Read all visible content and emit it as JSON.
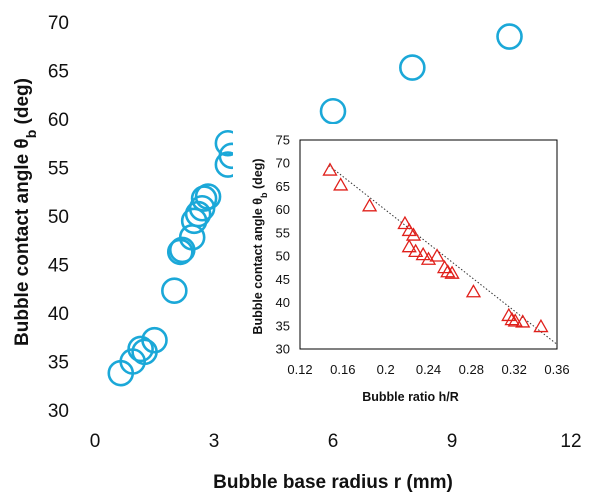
{
  "chart_data": [
    {
      "type": "scatter",
      "title": "",
      "xlabel": "Bubble base radius r (mm)",
      "ylabel_main": "Bubble contact angle θ",
      "ylabel_sub": "b",
      "ylabel_unit": " (deg)",
      "xlim": [
        0,
        12
      ],
      "ylim": [
        30,
        70
      ],
      "xticks": [
        0,
        3,
        6,
        9,
        12
      ],
      "xtick_labels": [
        "0",
        "3",
        "6",
        "9",
        "12"
      ],
      "yticks": [
        30,
        35,
        40,
        45,
        50,
        55,
        60,
        65,
        70
      ],
      "ytick_labels": [
        "30",
        "35",
        "40",
        "45",
        "50",
        "55",
        "60",
        "65",
        "70"
      ],
      "grid": false,
      "marker": "open-circle",
      "color": "#1ba8d8",
      "points": [
        {
          "x": 0.65,
          "y": 33.8
        },
        {
          "x": 0.95,
          "y": 35.0
        },
        {
          "x": 1.15,
          "y": 36.3
        },
        {
          "x": 1.25,
          "y": 36.0
        },
        {
          "x": 1.5,
          "y": 37.2
        },
        {
          "x": 2.0,
          "y": 42.3
        },
        {
          "x": 2.15,
          "y": 46.3
        },
        {
          "x": 2.2,
          "y": 46.5
        },
        {
          "x": 2.45,
          "y": 47.8
        },
        {
          "x": 2.5,
          "y": 49.5
        },
        {
          "x": 2.6,
          "y": 50.2
        },
        {
          "x": 2.7,
          "y": 50.8
        },
        {
          "x": 2.75,
          "y": 51.8
        },
        {
          "x": 2.85,
          "y": 52.0
        },
        {
          "x": 3.35,
          "y": 55.3
        },
        {
          "x": 3.45,
          "y": 56.2
        },
        {
          "x": 3.35,
          "y": 57.5
        },
        {
          "x": 6.0,
          "y": 60.8
        },
        {
          "x": 8.0,
          "y": 65.3
        },
        {
          "x": 10.45,
          "y": 68.5
        }
      ]
    },
    {
      "type": "scatter",
      "title": "",
      "xlabel": "Bubble ratio h/R",
      "ylabel_main": "Bubble contact angle θ",
      "ylabel_sub": "b",
      "ylabel_unit": " (deg)",
      "xlim": [
        0.12,
        0.36
      ],
      "ylim": [
        30,
        75
      ],
      "xticks": [
        0.12,
        0.16,
        0.2,
        0.24,
        0.28,
        0.32,
        0.36
      ],
      "xtick_labels": [
        "0.12",
        "0.16",
        "0.2",
        "0.24",
        "0.28",
        "0.32",
        "0.36"
      ],
      "yticks": [
        30,
        35,
        40,
        45,
        50,
        55,
        60,
        65,
        70,
        75
      ],
      "ytick_labels": [
        "30",
        "35",
        "40",
        "45",
        "50",
        "55",
        "60",
        "65",
        "70",
        "75"
      ],
      "grid": false,
      "marker": "open-triangle",
      "color": "#e0201b",
      "trendline": {
        "style": "dotted",
        "color": "#333333",
        "x": [
          0.147,
          0.36
        ],
        "y": [
          69.5,
          31.0
        ]
      },
      "points": [
        {
          "x": 0.148,
          "y": 68.5
        },
        {
          "x": 0.158,
          "y": 65.3
        },
        {
          "x": 0.185,
          "y": 60.8
        },
        {
          "x": 0.218,
          "y": 57.0
        },
        {
          "x": 0.222,
          "y": 55.5
        },
        {
          "x": 0.226,
          "y": 54.5
        },
        {
          "x": 0.222,
          "y": 52.0
        },
        {
          "x": 0.228,
          "y": 51.0
        },
        {
          "x": 0.235,
          "y": 50.3
        },
        {
          "x": 0.24,
          "y": 49.3
        },
        {
          "x": 0.248,
          "y": 50.0
        },
        {
          "x": 0.255,
          "y": 47.5
        },
        {
          "x": 0.258,
          "y": 46.6
        },
        {
          "x": 0.262,
          "y": 46.3
        },
        {
          "x": 0.282,
          "y": 42.3
        },
        {
          "x": 0.315,
          "y": 37.2
        },
        {
          "x": 0.318,
          "y": 36.3
        },
        {
          "x": 0.321,
          "y": 36.0
        },
        {
          "x": 0.328,
          "y": 35.8
        },
        {
          "x": 0.345,
          "y": 34.8
        }
      ]
    }
  ]
}
